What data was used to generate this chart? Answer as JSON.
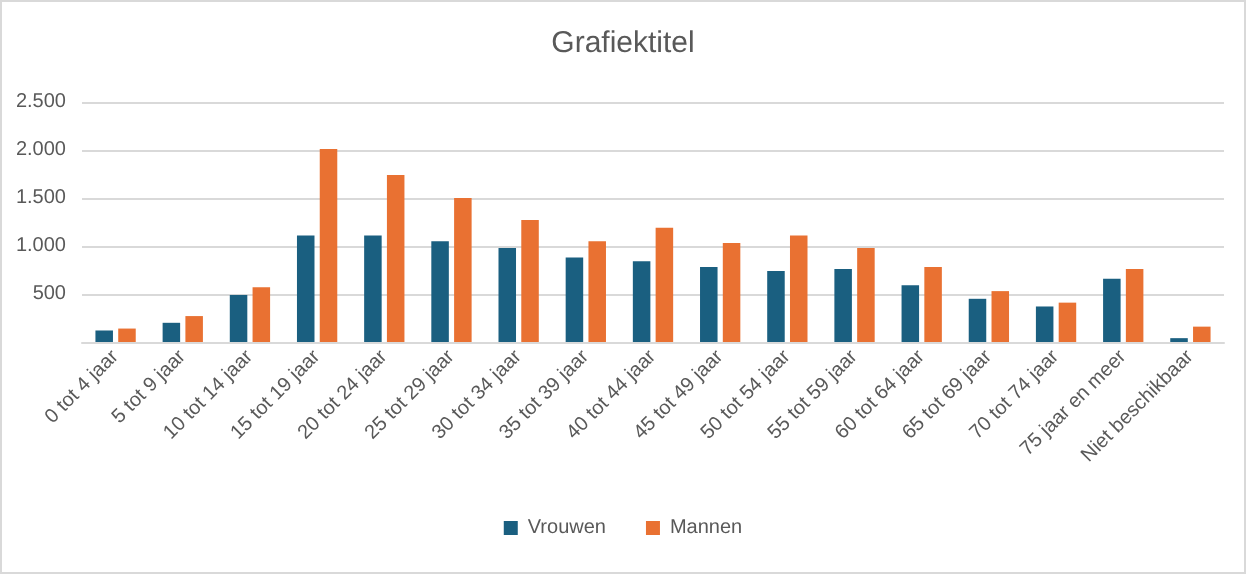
{
  "chart_data": {
    "type": "bar",
    "title": "Grafiektitel",
    "categories": [
      "0 tot 4 jaar",
      "5 tot 9 jaar",
      "10 tot 14 jaar",
      "15 tot 19 jaar",
      "20 tot 24 jaar",
      "25 tot 29 jaar",
      "30 tot 34 jaar",
      "35 tot 39 jaar",
      "40 tot 44 jaar",
      "45 tot 49 jaar",
      "50 tot 54 jaar",
      "55 tot 59 jaar",
      "60 tot 64 jaar",
      "65 tot 69 jaar",
      "70 tot 74 jaar",
      "75 jaar en meer",
      "Niet beschikbaar"
    ],
    "series": [
      {
        "name": "Vrouwen",
        "color": "#1a5f80",
        "values": [
          120,
          200,
          490,
          1110,
          1110,
          1050,
          980,
          880,
          840,
          780,
          740,
          760,
          590,
          450,
          370,
          660,
          40
        ]
      },
      {
        "name": "Mannen",
        "color": "#e97132",
        "values": [
          140,
          270,
          570,
          2010,
          1740,
          1500,
          1270,
          1050,
          1190,
          1030,
          1110,
          980,
          780,
          530,
          410,
          760,
          160
        ]
      }
    ],
    "ylim": [
      0,
      2500
    ],
    "yticks": [
      {
        "value": 0,
        "label": null
      },
      {
        "value": 500,
        "label": "500"
      },
      {
        "value": 1000,
        "label": "1.000"
      },
      {
        "value": 1500,
        "label": "1.500"
      },
      {
        "value": 2000,
        "label": "2.000"
      },
      {
        "value": 2500,
        "label": "2.500"
      }
    ],
    "grid": "y",
    "legend": "bottom"
  }
}
